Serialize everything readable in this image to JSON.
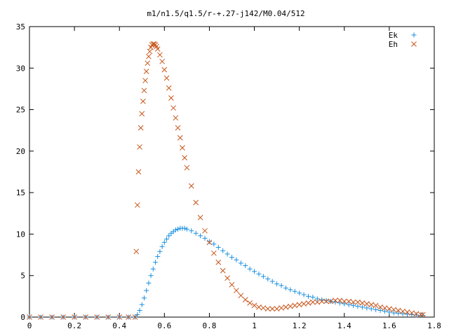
{
  "chart_data": {
    "type": "scatter",
    "title": "m1/n1.5/q1.5/r-+.27-j142/M0.04/512",
    "xlabel": "",
    "ylabel": "",
    "xlim": [
      0,
      1.8
    ],
    "ylim": [
      0,
      35
    ],
    "x_ticks": [
      0,
      0.2,
      0.4,
      0.6,
      0.8,
      1,
      1.2,
      1.4,
      1.6,
      1.8
    ],
    "x_tick_labels": [
      "0",
      "0.2",
      "0.4",
      "0.6",
      "0.8",
      "1",
      "1.2",
      "1.4",
      "1.6",
      "1.8"
    ],
    "y_ticks": [
      0,
      5,
      10,
      15,
      20,
      25,
      30,
      35
    ],
    "y_tick_labels": [
      "0",
      "5",
      "10",
      "15",
      "20",
      "25",
      "30",
      "35"
    ],
    "legend_position": "top-right",
    "grid": false,
    "series": [
      {
        "name": "Ek",
        "marker": "plus",
        "color": "#1a8fe0",
        "points": [
          [
            0.0,
            0
          ],
          [
            0.05,
            0
          ],
          [
            0.1,
            0
          ],
          [
            0.15,
            0
          ],
          [
            0.2,
            0
          ],
          [
            0.25,
            0
          ],
          [
            0.3,
            0
          ],
          [
            0.35,
            0
          ],
          [
            0.4,
            0
          ],
          [
            0.44,
            0
          ],
          [
            0.47,
            0
          ],
          [
            0.48,
            0.3
          ],
          [
            0.49,
            0.8
          ],
          [
            0.5,
            1.5
          ],
          [
            0.51,
            2.3
          ],
          [
            0.52,
            3.2
          ],
          [
            0.53,
            4.1
          ],
          [
            0.54,
            5.0
          ],
          [
            0.55,
            5.8
          ],
          [
            0.56,
            6.6
          ],
          [
            0.57,
            7.3
          ],
          [
            0.58,
            7.9
          ],
          [
            0.59,
            8.5
          ],
          [
            0.6,
            9.0
          ],
          [
            0.61,
            9.4
          ],
          [
            0.62,
            9.8
          ],
          [
            0.63,
            10.1
          ],
          [
            0.64,
            10.3
          ],
          [
            0.65,
            10.5
          ],
          [
            0.66,
            10.6
          ],
          [
            0.67,
            10.7
          ],
          [
            0.68,
            10.7
          ],
          [
            0.69,
            10.7
          ],
          [
            0.7,
            10.6
          ],
          [
            0.72,
            10.4
          ],
          [
            0.74,
            10.1
          ],
          [
            0.76,
            9.8
          ],
          [
            0.78,
            9.5
          ],
          [
            0.8,
            9.1
          ],
          [
            0.82,
            8.8
          ],
          [
            0.84,
            8.4
          ],
          [
            0.86,
            8.0
          ],
          [
            0.88,
            7.6
          ],
          [
            0.9,
            7.2
          ],
          [
            0.92,
            6.9
          ],
          [
            0.94,
            6.5
          ],
          [
            0.96,
            6.2
          ],
          [
            0.98,
            5.8
          ],
          [
            1.0,
            5.5
          ],
          [
            1.02,
            5.2
          ],
          [
            1.04,
            4.9
          ],
          [
            1.06,
            4.6
          ],
          [
            1.08,
            4.3
          ],
          [
            1.1,
            4.0
          ],
          [
            1.12,
            3.8
          ],
          [
            1.14,
            3.5
          ],
          [
            1.16,
            3.3
          ],
          [
            1.18,
            3.1
          ],
          [
            1.2,
            2.9
          ],
          [
            1.22,
            2.7
          ],
          [
            1.24,
            2.5
          ],
          [
            1.26,
            2.4
          ],
          [
            1.28,
            2.2
          ],
          [
            1.3,
            2.1
          ],
          [
            1.32,
            2.0
          ],
          [
            1.34,
            1.9
          ],
          [
            1.36,
            1.8
          ],
          [
            1.38,
            1.7
          ],
          [
            1.4,
            1.6
          ],
          [
            1.42,
            1.5
          ],
          [
            1.44,
            1.4
          ],
          [
            1.46,
            1.3
          ],
          [
            1.48,
            1.2
          ],
          [
            1.5,
            1.1
          ],
          [
            1.52,
            1.0
          ],
          [
            1.54,
            0.9
          ],
          [
            1.56,
            0.8
          ],
          [
            1.58,
            0.7
          ],
          [
            1.6,
            0.6
          ],
          [
            1.62,
            0.5
          ],
          [
            1.64,
            0.45
          ],
          [
            1.66,
            0.4
          ],
          [
            1.68,
            0.35
          ],
          [
            1.7,
            0.3
          ],
          [
            1.72,
            0.25
          ],
          [
            1.74,
            0.2
          ],
          [
            1.75,
            0.2
          ]
        ]
      },
      {
        "name": "Eh",
        "marker": "cross",
        "color": "#c8541a",
        "points": [
          [
            0.0,
            0
          ],
          [
            0.05,
            0
          ],
          [
            0.1,
            0
          ],
          [
            0.15,
            0
          ],
          [
            0.2,
            0
          ],
          [
            0.25,
            0
          ],
          [
            0.3,
            0
          ],
          [
            0.35,
            0
          ],
          [
            0.4,
            0
          ],
          [
            0.44,
            0
          ],
          [
            0.47,
            0
          ],
          [
            0.475,
            7.9
          ],
          [
            0.48,
            13.5
          ],
          [
            0.485,
            17.5
          ],
          [
            0.49,
            20.5
          ],
          [
            0.495,
            22.8
          ],
          [
            0.5,
            24.5
          ],
          [
            0.505,
            26.0
          ],
          [
            0.51,
            27.3
          ],
          [
            0.515,
            28.5
          ],
          [
            0.52,
            29.6
          ],
          [
            0.525,
            30.6
          ],
          [
            0.53,
            31.4
          ],
          [
            0.535,
            32.0
          ],
          [
            0.54,
            32.5
          ],
          [
            0.545,
            32.8
          ],
          [
            0.55,
            32.9
          ],
          [
            0.555,
            32.9
          ],
          [
            0.56,
            32.8
          ],
          [
            0.565,
            32.6
          ],
          [
            0.57,
            32.3
          ],
          [
            0.58,
            31.6
          ],
          [
            0.59,
            30.8
          ],
          [
            0.6,
            29.8
          ],
          [
            0.61,
            28.8
          ],
          [
            0.62,
            27.6
          ],
          [
            0.63,
            26.4
          ],
          [
            0.64,
            25.2
          ],
          [
            0.65,
            24.0
          ],
          [
            0.66,
            22.8
          ],
          [
            0.67,
            21.6
          ],
          [
            0.68,
            20.4
          ],
          [
            0.69,
            19.2
          ],
          [
            0.7,
            18.0
          ],
          [
            0.72,
            15.8
          ],
          [
            0.74,
            13.8
          ],
          [
            0.76,
            12.0
          ],
          [
            0.78,
            10.4
          ],
          [
            0.8,
            9.0
          ],
          [
            0.82,
            7.7
          ],
          [
            0.84,
            6.6
          ],
          [
            0.86,
            5.6
          ],
          [
            0.88,
            4.7
          ],
          [
            0.9,
            3.9
          ],
          [
            0.92,
            3.2
          ],
          [
            0.94,
            2.6
          ],
          [
            0.96,
            2.1
          ],
          [
            0.98,
            1.7
          ],
          [
            1.0,
            1.4
          ],
          [
            1.02,
            1.2
          ],
          [
            1.04,
            1.1
          ],
          [
            1.06,
            1.0
          ],
          [
            1.08,
            1.0
          ],
          [
            1.1,
            1.0
          ],
          [
            1.12,
            1.1
          ],
          [
            1.14,
            1.2
          ],
          [
            1.16,
            1.3
          ],
          [
            1.18,
            1.4
          ],
          [
            1.2,
            1.5
          ],
          [
            1.22,
            1.6
          ],
          [
            1.24,
            1.7
          ],
          [
            1.26,
            1.8
          ],
          [
            1.28,
            1.8
          ],
          [
            1.3,
            1.9
          ],
          [
            1.32,
            1.9
          ],
          [
            1.34,
            1.9
          ],
          [
            1.36,
            2.0
          ],
          [
            1.38,
            2.0
          ],
          [
            1.4,
            1.9
          ],
          [
            1.42,
            1.9
          ],
          [
            1.44,
            1.8
          ],
          [
            1.46,
            1.8
          ],
          [
            1.48,
            1.7
          ],
          [
            1.5,
            1.6
          ],
          [
            1.52,
            1.5
          ],
          [
            1.54,
            1.4
          ],
          [
            1.56,
            1.2
          ],
          [
            1.58,
            1.1
          ],
          [
            1.6,
            1.0
          ],
          [
            1.62,
            0.9
          ],
          [
            1.64,
            0.8
          ],
          [
            1.66,
            0.7
          ],
          [
            1.68,
            0.6
          ],
          [
            1.7,
            0.5
          ],
          [
            1.72,
            0.4
          ],
          [
            1.74,
            0.3
          ],
          [
            1.75,
            0.3
          ]
        ]
      }
    ]
  }
}
